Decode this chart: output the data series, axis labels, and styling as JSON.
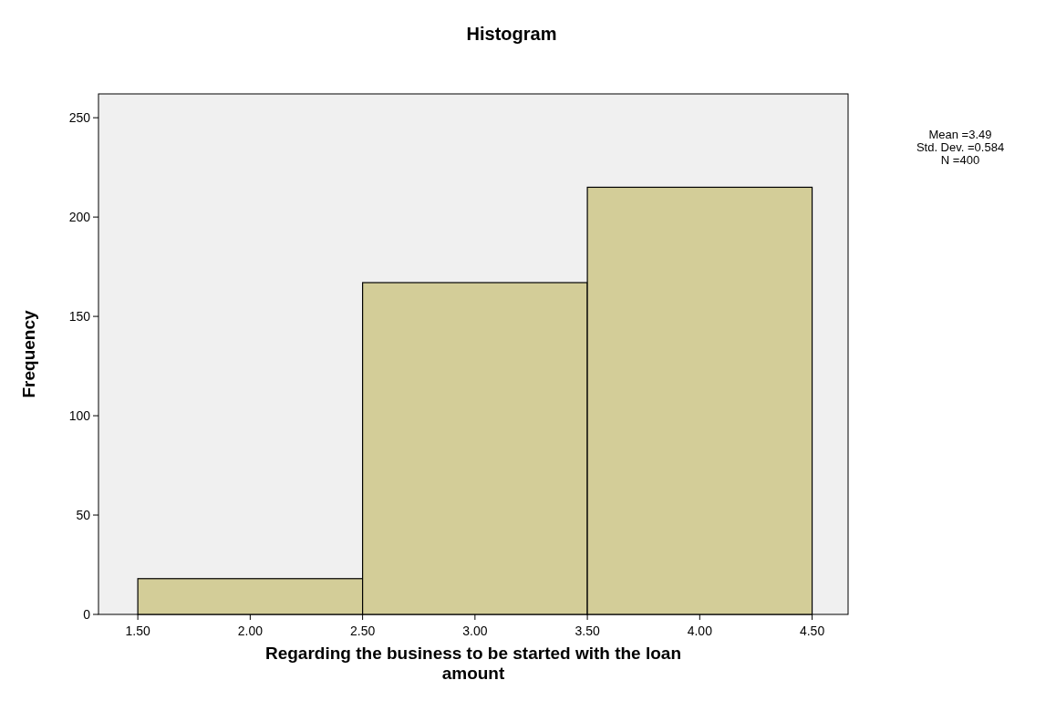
{
  "chart_data": {
    "type": "histogram",
    "title": "Histogram",
    "xlabel": "Regarding the business to be started with the loan amount",
    "ylabel": "Frequency",
    "bins": [
      1.5,
      2.5,
      3.5,
      4.5
    ],
    "values": [
      18,
      167,
      215
    ],
    "color": "#d3cd98",
    "xlim": [
      1.325,
      4.66
    ],
    "ylim": [
      0,
      262
    ],
    "xticks": [
      {
        "value": 1.5,
        "label": "1.50"
      },
      {
        "value": 2,
        "label": "2.00"
      },
      {
        "value": 2.5,
        "label": "2.50"
      },
      {
        "value": 3,
        "label": "3.00"
      },
      {
        "value": 3.5,
        "label": "3.50"
      },
      {
        "value": 4,
        "label": "4.00"
      },
      {
        "value": 4.5,
        "label": "4.50"
      }
    ],
    "yticks": [
      0,
      50,
      100,
      150,
      200,
      250
    ],
    "annotations": [
      "Mean =3.49",
      "Std. Dev. =0.584",
      "N =400"
    ]
  }
}
